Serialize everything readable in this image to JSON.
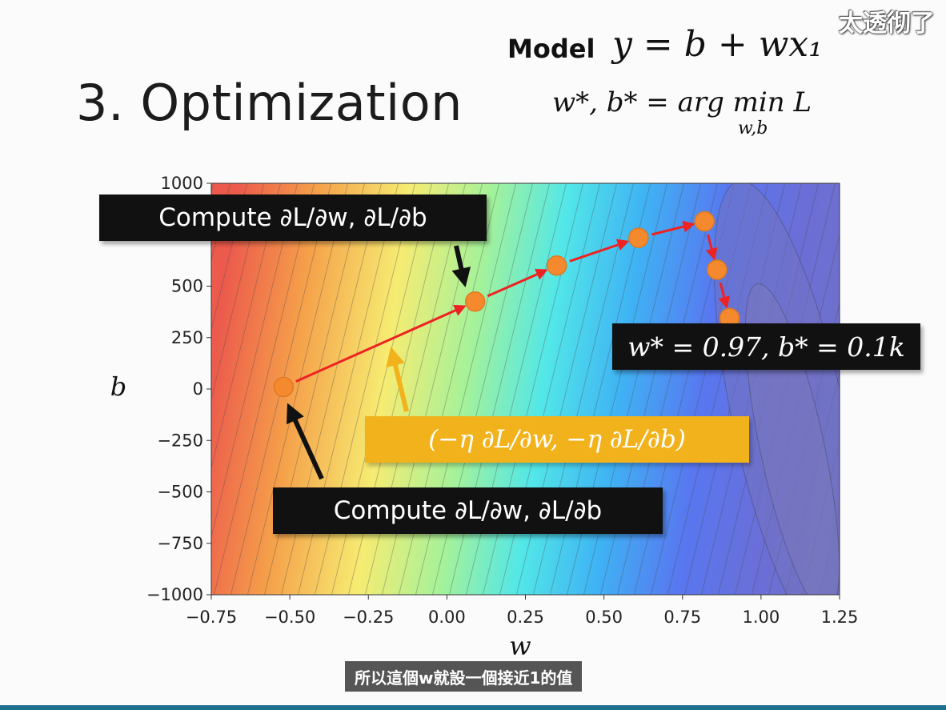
{
  "slide": {
    "title": "3. Optimization",
    "model_label": "Model",
    "model_equation": "y = b + wx₁",
    "argmin_equation": "w*, b* = arg min L",
    "argmin_subscript": "w,b"
  },
  "watermark": "太透彻了",
  "subtitle": "所以這個w就設一個接近1的值",
  "callouts": {
    "compute_top": "Compute ∂L/∂w, ∂L/∂b",
    "compute_bottom": "Compute ∂L/∂w, ∂L/∂b",
    "step": "(−η ∂L/∂w, −η ∂L/∂b)",
    "result": "w* = 0.97, b* = 0.1k"
  },
  "colors": {
    "path_arrow": "#ee2222",
    "point": "#f5892e",
    "step_box": "#f2b21b",
    "callout_box": "#111111"
  },
  "chart_data": {
    "type": "scatter",
    "subtype": "contour-with-gradient-descent-path",
    "xlabel": "w",
    "ylabel": "b",
    "xlim": [
      -0.75,
      1.25
    ],
    "ylim": [
      -1000,
      1000
    ],
    "x_ticks": [
      "−0.75",
      "−0.50",
      "−0.25",
      "0.00",
      "0.25",
      "0.50",
      "0.75",
      "1.00",
      "1.25"
    ],
    "y_ticks": [
      "1000",
      "750",
      "500",
      "250",
      "0",
      "−250",
      "−500",
      "−750",
      "−1000"
    ],
    "grid": false,
    "series": [
      {
        "points": [
          {
            "x": -0.52,
            "y": 10
          },
          {
            "x": 0.09,
            "y": 425
          },
          {
            "x": 0.35,
            "y": 600
          },
          {
            "x": 0.61,
            "y": 735
          },
          {
            "x": 0.82,
            "y": 815
          },
          {
            "x": 0.86,
            "y": 580
          },
          {
            "x": 0.9,
            "y": 345
          }
        ]
      }
    ],
    "optimum": {
      "x": 0.97,
      "y": 100
    }
  }
}
